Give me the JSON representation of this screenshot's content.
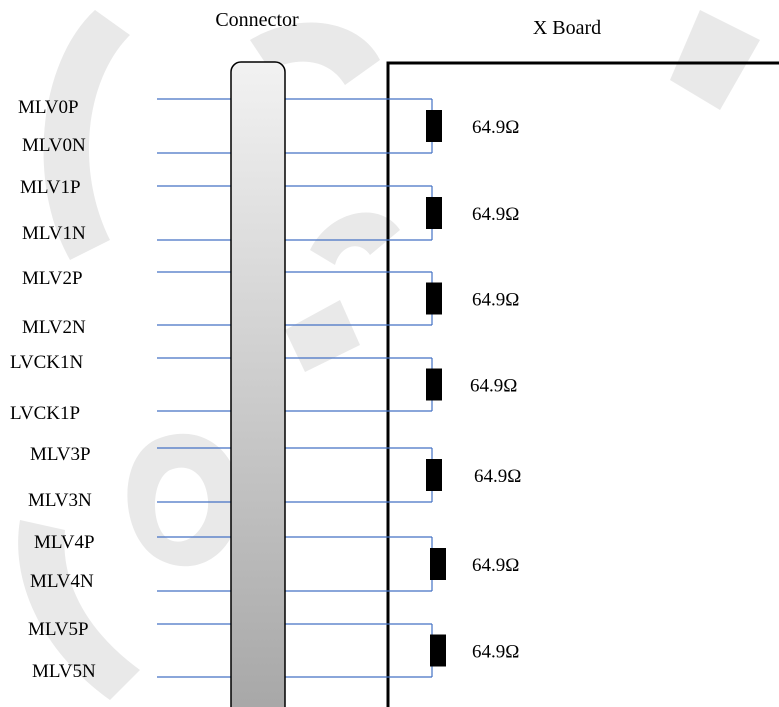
{
  "headers": {
    "connector": "Connector",
    "board": "X Board"
  },
  "signals": [
    {
      "name": "MLV0P"
    },
    {
      "name": "MLV0N"
    },
    {
      "name": "MLV1P"
    },
    {
      "name": "MLV1N"
    },
    {
      "name": "MLV2P"
    },
    {
      "name": "MLV2N"
    },
    {
      "name": "LVCK1N"
    },
    {
      "name": "LVCK1P"
    },
    {
      "name": "MLV3P"
    },
    {
      "name": "MLV3N"
    },
    {
      "name": "MLV4P"
    },
    {
      "name": "MLV4N"
    },
    {
      "name": "MLV5P"
    },
    {
      "name": "MLV5N"
    }
  ],
  "resistors": [
    {
      "value": "64.9Ω"
    },
    {
      "value": "64.9Ω"
    },
    {
      "value": "64.9Ω"
    },
    {
      "value": "64.9Ω"
    },
    {
      "value": "64.9Ω"
    },
    {
      "value": "64.9Ω"
    },
    {
      "value": "64.9Ω"
    }
  ],
  "watermark": "Confidential",
  "colors": {
    "wire": "#4472c4",
    "board": "#000000",
    "resistor": "#000000"
  }
}
